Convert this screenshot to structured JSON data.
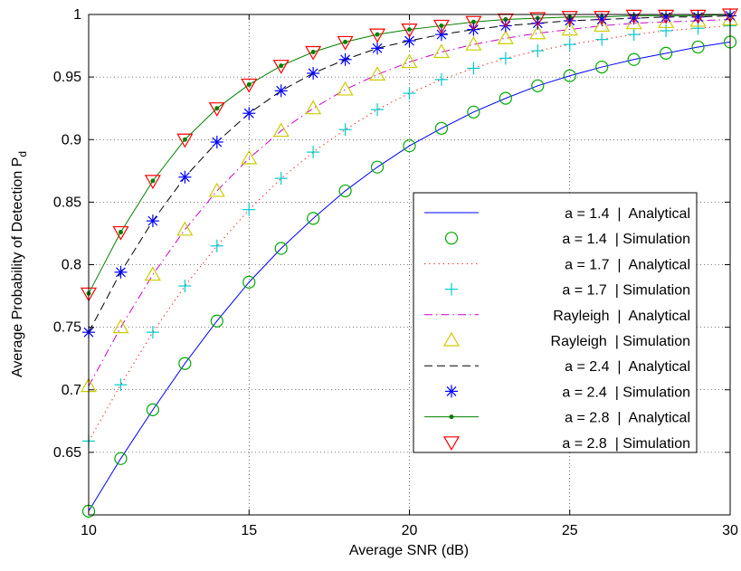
{
  "chart_data": {
    "type": "line",
    "xlabel": "Average SNR (dB)",
    "ylabel": "Average Probability of Detection P",
    "ylabel_subscript": "d",
    "xlim": [
      10,
      30
    ],
    "ylim": [
      0.6,
      1.0
    ],
    "x_ticks": [
      10,
      15,
      20,
      25,
      30
    ],
    "y_ticks": [
      0.65,
      0.7,
      0.75,
      0.8,
      0.85,
      0.9,
      0.95,
      1
    ],
    "x_tick_labels": [
      "10",
      "15",
      "20",
      "25",
      "30"
    ],
    "y_tick_labels": [
      "0.65",
      "0.7",
      "0.75",
      "0.8",
      "0.85",
      "0.9",
      "0.95",
      "1"
    ],
    "grid": true,
    "legend_position": "right",
    "x": [
      10,
      11,
      12,
      13,
      14,
      15,
      16,
      17,
      18,
      19,
      20,
      21,
      22,
      23,
      24,
      25,
      26,
      27,
      28,
      29,
      30
    ],
    "series": [
      {
        "name": "a = 1.4  |  Analytical",
        "kind": "analytical",
        "color": "#0000ff",
        "line_style": "solid",
        "marker": "none",
        "values": [
          0.603,
          0.645,
          0.684,
          0.721,
          0.755,
          0.786,
          0.813,
          0.837,
          0.859,
          0.878,
          0.895,
          0.909,
          0.922,
          0.933,
          0.943,
          0.951,
          0.958,
          0.964,
          0.969,
          0.974,
          0.978
        ]
      },
      {
        "name": "a = 1.4  | Simulation",
        "kind": "simulation",
        "color": "#00aa00",
        "marker": "circle",
        "values": [
          0.603,
          0.645,
          0.684,
          0.721,
          0.755,
          0.786,
          0.813,
          0.837,
          0.859,
          0.878,
          0.895,
          0.909,
          0.922,
          0.933,
          0.943,
          0.951,
          0.958,
          0.964,
          0.969,
          0.974,
          0.978
        ]
      },
      {
        "name": "a = 1.7  |  Analytical",
        "kind": "analytical",
        "color": "#ff0000",
        "line_style": "dotted",
        "marker": "none",
        "values": [
          0.659,
          0.704,
          0.746,
          0.783,
          0.815,
          0.844,
          0.869,
          0.89,
          0.908,
          0.924,
          0.937,
          0.948,
          0.957,
          0.965,
          0.971,
          0.976,
          0.98,
          0.984,
          0.987,
          0.989,
          0.991
        ]
      },
      {
        "name": "a = 1.7  | Simulation",
        "kind": "simulation",
        "color": "#00cccc",
        "marker": "plus",
        "values": [
          0.659,
          0.704,
          0.746,
          0.783,
          0.815,
          0.844,
          0.869,
          0.89,
          0.908,
          0.924,
          0.937,
          0.948,
          0.957,
          0.965,
          0.971,
          0.976,
          0.98,
          0.984,
          0.987,
          0.989,
          0.991
        ]
      },
      {
        "name": "Rayleigh  |  Analytical",
        "kind": "analytical",
        "color": "#cc00cc",
        "line_style": "dashdot",
        "marker": "none",
        "values": [
          0.703,
          0.75,
          0.792,
          0.828,
          0.859,
          0.885,
          0.907,
          0.925,
          0.94,
          0.952,
          0.962,
          0.97,
          0.976,
          0.981,
          0.985,
          0.988,
          0.991,
          0.993,
          0.994,
          0.995,
          0.996
        ]
      },
      {
        "name": "Rayleigh  | Simulation",
        "kind": "simulation",
        "color": "#cccc00",
        "marker": "triangle-up",
        "values": [
          0.703,
          0.75,
          0.792,
          0.828,
          0.859,
          0.885,
          0.907,
          0.925,
          0.94,
          0.952,
          0.962,
          0.97,
          0.976,
          0.981,
          0.985,
          0.988,
          0.991,
          0.993,
          0.994,
          0.995,
          0.996
        ]
      },
      {
        "name": "a = 2.4  |  Analytical",
        "kind": "analytical",
        "color": "#000000",
        "line_style": "dashed",
        "marker": "none",
        "values": [
          0.746,
          0.794,
          0.835,
          0.87,
          0.898,
          0.921,
          0.939,
          0.953,
          0.964,
          0.973,
          0.979,
          0.984,
          0.988,
          0.991,
          0.993,
          0.995,
          0.996,
          0.997,
          0.998,
          0.998,
          0.999
        ]
      },
      {
        "name": "a = 2.4  | Simulation",
        "kind": "simulation",
        "color": "#0000ff",
        "marker": "asterisk",
        "values": [
          0.746,
          0.794,
          0.835,
          0.87,
          0.898,
          0.921,
          0.939,
          0.953,
          0.964,
          0.973,
          0.979,
          0.984,
          0.988,
          0.991,
          0.993,
          0.995,
          0.996,
          0.997,
          0.998,
          0.998,
          0.999
        ]
      },
      {
        "name": "a = 2.8  |  Analytical",
        "kind": "analytical",
        "color": "#008000",
        "line_style": "solid",
        "marker": "dot",
        "values": [
          0.777,
          0.826,
          0.867,
          0.9,
          0.925,
          0.944,
          0.959,
          0.97,
          0.978,
          0.984,
          0.988,
          0.991,
          0.994,
          0.996,
          0.997,
          0.998,
          0.998,
          0.999,
          0.999,
          0.999,
          1.0
        ]
      },
      {
        "name": "a = 2.8  | Simulation",
        "kind": "simulation",
        "color": "#ff0000",
        "marker": "triangle-down",
        "values": [
          0.777,
          0.826,
          0.867,
          0.9,
          0.925,
          0.944,
          0.959,
          0.97,
          0.978,
          0.984,
          0.988,
          0.991,
          0.994,
          0.996,
          0.997,
          0.998,
          0.998,
          0.999,
          0.999,
          0.999,
          1.0
        ]
      }
    ]
  }
}
